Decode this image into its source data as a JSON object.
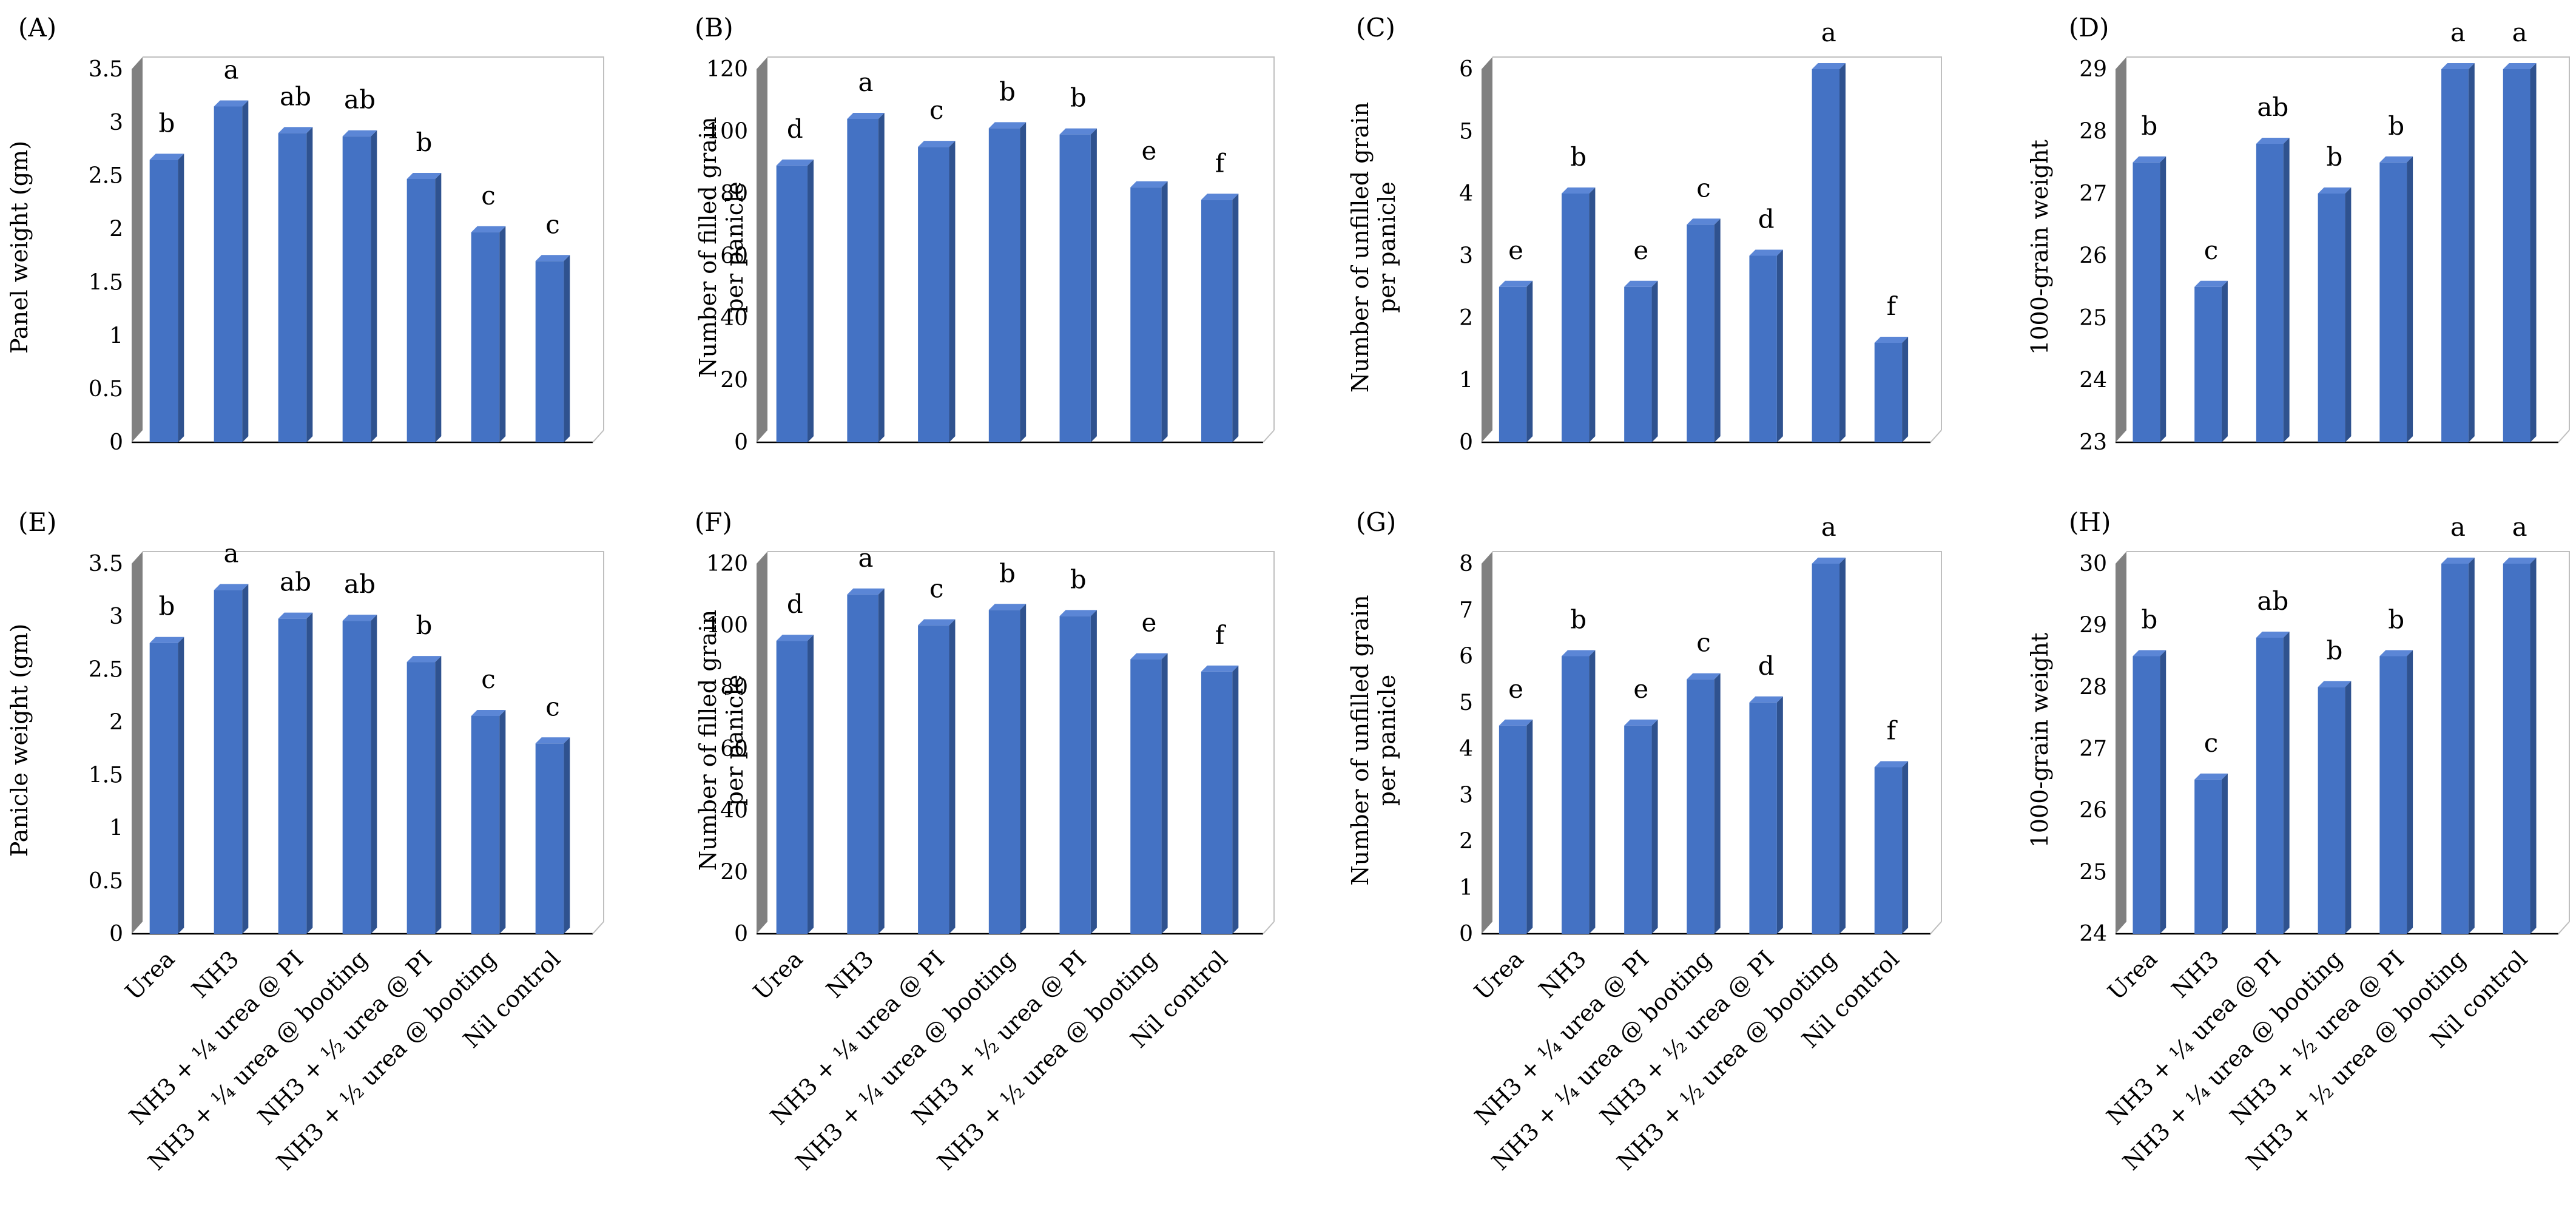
{
  "style": {
    "bar_front": "#4472c4",
    "bar_side": "#2f528f",
    "bar_top": "#5b86d6",
    "wall_shade": "#808080"
  },
  "chart_data": [
    {
      "type": "bar",
      "panel": "(A)",
      "ylabel": "Panel weight (gm)",
      "ylim": [
        0,
        3.5
      ],
      "yticks": [
        "0",
        "0.5",
        "1",
        "1.5",
        "2",
        "2.5",
        "3",
        "3.5"
      ],
      "categories": [
        "Urea",
        "NH3",
        "NH3 + ¼ urea @ PI",
        "NH3 + ¼ urea @ booting",
        "NH3 + ½ urea @ PI",
        "NH3 + ½ urea @ booting",
        "Nil control"
      ],
      "values": [
        2.65,
        3.15,
        2.9,
        2.87,
        2.47,
        1.97,
        1.7
      ],
      "letters": [
        "b",
        "a",
        "ab",
        "ab",
        "b",
        "c",
        "c"
      ]
    },
    {
      "type": "bar",
      "panel": "(B)",
      "ylabel": "Number of filled grain per panicle",
      "ylim": [
        0,
        120
      ],
      "yticks": [
        "0",
        "20",
        "40",
        "60",
        "80",
        "100",
        "120"
      ],
      "categories": [
        "Urea",
        "NH3",
        "NH3 + ¼ urea @ PI",
        "NH3 + ¼ urea @ booting",
        "NH3 + ½ urea @ PI",
        "NH3 + ½ urea @ booting",
        "Nil control"
      ],
      "values": [
        89,
        104,
        95,
        101,
        99,
        82,
        78
      ],
      "letters": [
        "d",
        "a",
        "c",
        "b",
        "b",
        "e",
        "f"
      ]
    },
    {
      "type": "bar",
      "panel": "(C)",
      "ylabel": "Number of unfilled grain per panicle",
      "ylim": [
        0,
        6
      ],
      "yticks": [
        "0",
        "1",
        "2",
        "3",
        "4",
        "5",
        "6"
      ],
      "categories": [
        "Urea",
        "NH3",
        "NH3 + ¼ urea @ PI",
        "NH3 + ¼ urea @ booting",
        "NH3 + ½ urea @ PI",
        "NH3 + ½ urea @ booting",
        "Nil control"
      ],
      "values": [
        2.5,
        4.0,
        2.5,
        3.5,
        3.0,
        6.0,
        1.6
      ],
      "letters": [
        "e",
        "b",
        "e",
        "c",
        "d",
        "a",
        "f"
      ]
    },
    {
      "type": "bar",
      "panel": "(D)",
      "ylabel": "1000-grain weight",
      "ylim": [
        23,
        29
      ],
      "yticks": [
        "23",
        "24",
        "25",
        "26",
        "27",
        "28",
        "29"
      ],
      "categories": [
        "Urea",
        "NH3",
        "NH3 + ¼ urea @ PI",
        "NH3 + ¼ urea @ booting",
        "NH3 + ½ urea @ PI",
        "NH3 + ½ urea @ booting",
        "Nil control"
      ],
      "values": [
        27.5,
        25.5,
        27.8,
        27.0,
        27.5,
        29.0,
        29.0
      ],
      "letters": [
        "b",
        "c",
        "ab",
        "b",
        "b",
        "a",
        "a"
      ]
    },
    {
      "type": "bar",
      "panel": "(E)",
      "ylabel": "Panicle weight (gm)",
      "ylim": [
        0,
        3.5
      ],
      "yticks": [
        "0",
        "0.5",
        "1",
        "1.5",
        "2",
        "2.5",
        "3",
        "3.5"
      ],
      "categories": [
        "Urea",
        "NH3",
        "NH3 + ¼ urea @ PI",
        "NH3 + ¼ urea @ booting",
        "NH3 + ½ urea @ PI",
        "NH3 + ½ urea @ booting",
        "Nil control"
      ],
      "values": [
        2.75,
        3.25,
        2.98,
        2.96,
        2.57,
        2.06,
        1.8
      ],
      "letters": [
        "b",
        "a",
        "ab",
        "ab",
        "b",
        "c",
        "c"
      ]
    },
    {
      "type": "bar",
      "panel": "(F)",
      "ylabel": "Number of filled grain per panicle",
      "ylim": [
        0,
        120
      ],
      "yticks": [
        "0",
        "20",
        "40",
        "60",
        "80",
        "100",
        "120"
      ],
      "categories": [
        "Urea",
        "NH3",
        "NH3 + ¼ urea @ PI",
        "NH3 + ¼ urea @ booting",
        "NH3 + ½ urea @ PI",
        "NH3 + ½ urea @ booting",
        "Nil control"
      ],
      "values": [
        95,
        110,
        100,
        105,
        103,
        89,
        85
      ],
      "letters": [
        "d",
        "a",
        "c",
        "b",
        "b",
        "e",
        "f"
      ]
    },
    {
      "type": "bar",
      "panel": "(G)",
      "ylabel": "Number of unfilled grain per panicle",
      "ylim": [
        0,
        8
      ],
      "yticks": [
        "0",
        "1",
        "2",
        "3",
        "4",
        "5",
        "6",
        "7",
        "8"
      ],
      "categories": [
        "Urea",
        "NH3",
        "NH3 + ¼ urea @ PI",
        "NH3 + ¼ urea @ booting",
        "NH3 + ½ urea @ PI",
        "NH3 + ½ urea @ booting",
        "Nil control"
      ],
      "values": [
        4.5,
        6.0,
        4.5,
        5.5,
        5.0,
        8.0,
        3.6
      ],
      "letters": [
        "e",
        "b",
        "e",
        "c",
        "d",
        "a",
        "f"
      ]
    },
    {
      "type": "bar",
      "panel": "(H)",
      "ylabel": "1000-grain weight",
      "ylim": [
        24,
        30
      ],
      "yticks": [
        "24",
        "25",
        "26",
        "27",
        "28",
        "29",
        "30"
      ],
      "categories": [
        "Urea",
        "NH3",
        "NH3 + ¼ urea @ PI",
        "NH3 + ¼ urea @ booting",
        "NH3 + ½ urea @ PI",
        "NH3 + ½ urea @ booting",
        "Nil control"
      ],
      "values": [
        28.5,
        26.5,
        28.8,
        28.0,
        28.5,
        30.0,
        30.0
      ],
      "letters": [
        "b",
        "c",
        "ab",
        "b",
        "b",
        "a",
        "a"
      ]
    }
  ]
}
